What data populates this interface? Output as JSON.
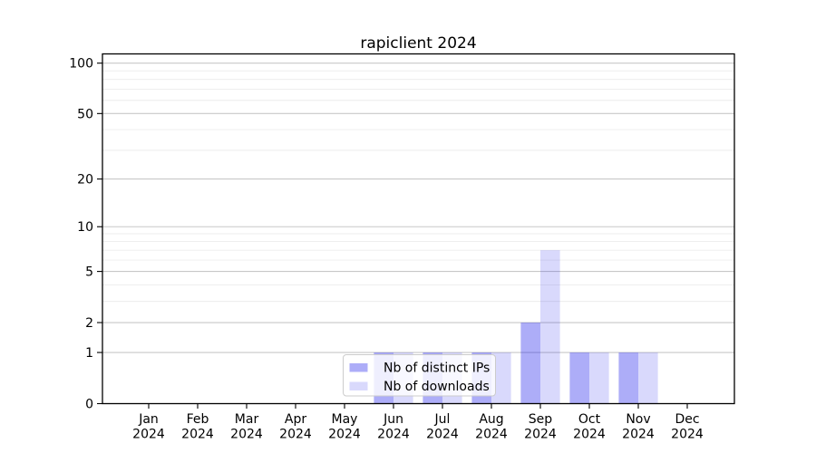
{
  "chart_data": {
    "type": "bar",
    "title": "rapiclient 2024",
    "months": [
      "Jan",
      "Feb",
      "Mar",
      "Apr",
      "May",
      "Jun",
      "Jul",
      "Aug",
      "Sep",
      "Oct",
      "Nov",
      "Dec"
    ],
    "year": "2024",
    "series": [
      {
        "name": "Nb of distinct IPs",
        "color": "rgba(20,20,235,0.35)",
        "values": [
          0,
          0,
          0,
          0,
          0,
          1,
          1,
          1,
          2,
          1,
          1,
          0
        ]
      },
      {
        "name": "Nb of downloads",
        "color": "rgba(20,20,235,0.16)",
        "values": [
          0,
          0,
          0,
          0,
          0,
          1,
          1,
          1,
          7,
          1,
          1,
          0
        ]
      }
    ],
    "y_axis": {
      "scale": "log1p",
      "major_ticks": [
        0,
        1,
        2,
        5,
        10,
        20,
        50,
        100
      ],
      "minor_ticks": [
        3,
        4,
        6,
        7,
        8,
        9,
        30,
        40,
        60,
        70,
        80,
        90
      ],
      "max": 114
    },
    "x_axis": {
      "tick_label_lines": 2
    },
    "legend": {
      "position": "inside-bottom-center"
    },
    "colors": {
      "major_grid": "#c8c8c8",
      "minor_grid": "#ececec",
      "axis": "#000000",
      "plot_background": "#ffffff",
      "legend_background": "rgba(255,255,255,0.8)",
      "legend_border": "#cccccc"
    }
  }
}
